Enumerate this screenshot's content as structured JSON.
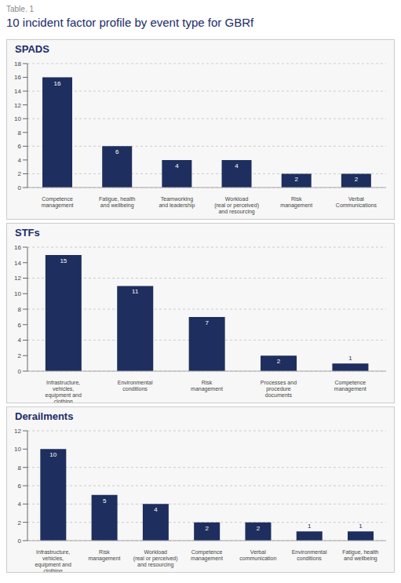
{
  "subtitle": "Table. 1",
  "title": "10 incident factor profile by event type for GBRf",
  "chart_data": [
    {
      "type": "bar",
      "title": "SPADS",
      "categories": [
        "Competence\nmanagement",
        "Fatigue, health\nand wellbeing",
        "Teamworking\nand leadership",
        "Workload\n(real or perceived)\nand resourcing",
        "Risk\nmanagement",
        "Verbal\nCommunications"
      ],
      "values": [
        16,
        6,
        4,
        4,
        2,
        2
      ],
      "color": "#1e2e5e",
      "ylim": [
        0,
        18
      ],
      "yticks": [
        0,
        2,
        4,
        6,
        8,
        10,
        12,
        14,
        16,
        18
      ],
      "grid": true,
      "data_labels": true
    },
    {
      "type": "bar",
      "title": "STFs",
      "categories": [
        "Infrastructure,\nvehicles,\nequipment and\nclothing",
        "Environmental\nconditions",
        "Risk\nmanagement",
        "Processes and\nprocedure\ndocuments",
        "Competence\nmanagement"
      ],
      "values": [
        15,
        11,
        7,
        2,
        1
      ],
      "color": "#1e2e5e",
      "ylim": [
        0,
        16
      ],
      "yticks": [
        0,
        2,
        4,
        6,
        8,
        10,
        12,
        14,
        16
      ],
      "grid": true,
      "data_labels": true
    },
    {
      "type": "bar",
      "title": "Derailments",
      "categories": [
        "Infrastructure,\nvehicles,\nequipment and\nclothing",
        "Risk\nmanagement",
        "Workload\n(real or perceived)\nand resourcing",
        "Competence\nmanagement",
        "Verbal\ncommunication",
        "Environmental\nconditions",
        "Fatigue, health\nand wellbeing"
      ],
      "values": [
        10,
        5,
        4,
        2,
        2,
        1,
        1
      ],
      "color": "#1e2e5e",
      "ylim": [
        0,
        12
      ],
      "yticks": [
        0,
        2,
        4,
        6,
        8,
        10,
        12
      ],
      "grid": true,
      "data_labels": true
    }
  ]
}
